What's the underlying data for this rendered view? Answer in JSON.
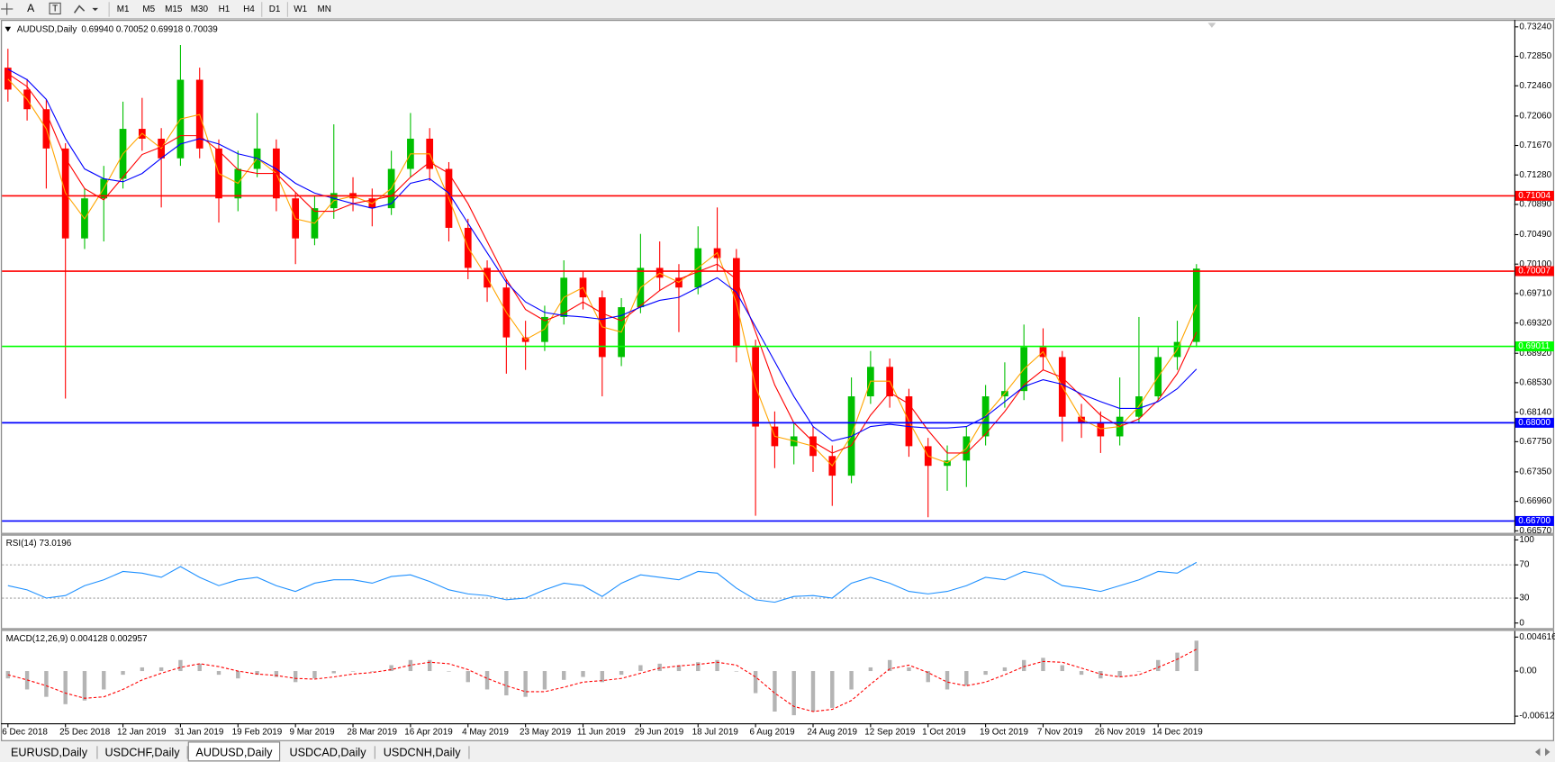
{
  "toolbar": {
    "buttons": [
      "M1",
      "M5",
      "M15",
      "M30",
      "H1",
      "H4",
      "D1",
      "W1",
      "MN"
    ]
  },
  "tabs": [
    {
      "label": "EURUSD,Daily",
      "active": false
    },
    {
      "label": "USDCHF,Daily",
      "active": false
    },
    {
      "label": "AUDUSD,Daily",
      "active": true
    },
    {
      "label": "USDCAD,Daily",
      "active": false
    },
    {
      "label": "USDCNH,Daily",
      "active": false
    }
  ],
  "chart_data": [
    {
      "type": "candlestick",
      "title": "AUDUSD,Daily",
      "subtitle": "0.69940 0.70052 0.69918 0.70039",
      "categories": [
        "6 Dec 2018",
        null,
        null,
        "25 Dec 2018",
        null,
        null,
        "12 Jan 2019",
        null,
        null,
        "31 Jan 2019",
        null,
        null,
        "19 Feb 2019",
        null,
        null,
        "9 Mar 2019",
        null,
        null,
        "28 Mar 2019",
        null,
        null,
        "16 Apr 2019",
        null,
        null,
        "4 May 2019",
        null,
        null,
        "23 May 2019",
        null,
        null,
        "11 Jun 2019",
        null,
        null,
        "29 Jun 2019",
        null,
        null,
        "18 Jul 2019",
        null,
        null,
        "6 Aug 2019",
        null,
        null,
        "24 Aug 2019",
        null,
        null,
        "12 Sep 2019",
        null,
        null,
        "1 Oct 2019",
        null,
        null,
        "19 Oct 2019",
        null,
        null,
        "7 Nov 2019",
        null,
        null,
        "26 Nov 2019",
        null,
        null,
        "14 Dec 2019",
        null,
        null
      ],
      "open": [
        0.727,
        0.7241,
        0.7215,
        0.7163,
        0.7044,
        0.7097,
        0.7123,
        0.7189,
        0.7176,
        0.715,
        0.7254,
        0.7163,
        0.7097,
        0.7136,
        0.7163,
        0.7097,
        0.7044,
        0.7084,
        0.7104,
        0.7097,
        0.7084,
        0.7136,
        0.7176,
        0.7136,
        0.7058,
        0.7005,
        0.6979,
        0.6913,
        0.6907,
        0.694,
        0.6992,
        0.6966,
        0.6887,
        0.6953,
        0.7005,
        0.6992,
        0.6979,
        0.7031,
        0.7018,
        0.69,
        0.6795,
        0.6769,
        0.6782,
        0.6756,
        0.673,
        0.6835,
        0.6874,
        0.6835,
        0.6769,
        0.6743,
        0.675,
        0.6782,
        0.6835,
        0.6842,
        0.69,
        0.6887,
        0.6808,
        0.6801,
        0.6782,
        0.6808,
        0.6835,
        0.6887,
        0.6907
      ],
      "high": [
        0.7295,
        0.7255,
        0.7228,
        0.717,
        0.711,
        0.714,
        0.7225,
        0.723,
        0.719,
        0.73,
        0.727,
        0.7175,
        0.716,
        0.721,
        0.7175,
        0.7105,
        0.71,
        0.7195,
        0.7125,
        0.711,
        0.716,
        0.721,
        0.719,
        0.7145,
        0.707,
        0.7015,
        0.699,
        0.6935,
        0.6955,
        0.7015,
        0.7,
        0.6975,
        0.6965,
        0.705,
        0.704,
        0.701,
        0.706,
        0.7085,
        0.703,
        0.691,
        0.6815,
        0.68,
        0.6795,
        0.677,
        0.686,
        0.6895,
        0.6885,
        0.6845,
        0.678,
        0.677,
        0.6795,
        0.685,
        0.688,
        0.693,
        0.6925,
        0.6895,
        0.6825,
        0.6815,
        0.686,
        0.694,
        0.69,
        0.6935,
        0.701
      ],
      "low": [
        0.7225,
        0.72,
        0.711,
        0.6832,
        0.703,
        0.704,
        0.711,
        0.716,
        0.7085,
        0.714,
        0.715,
        0.7065,
        0.708,
        0.7125,
        0.708,
        0.701,
        0.7035,
        0.707,
        0.708,
        0.706,
        0.7075,
        0.7125,
        0.712,
        0.704,
        0.699,
        0.696,
        0.6865,
        0.687,
        0.6895,
        0.693,
        0.695,
        0.6835,
        0.6875,
        0.6945,
        0.6975,
        0.692,
        0.697,
        0.7,
        0.688,
        0.6677,
        0.674,
        0.6745,
        0.6735,
        0.669,
        0.672,
        0.6825,
        0.682,
        0.6755,
        0.6675,
        0.671,
        0.6715,
        0.677,
        0.682,
        0.683,
        0.687,
        0.6775,
        0.678,
        0.676,
        0.677,
        0.68,
        0.683,
        0.687,
        0.69
      ],
      "close": [
        0.7241,
        0.7215,
        0.7163,
        0.7044,
        0.7097,
        0.7123,
        0.7189,
        0.7176,
        0.715,
        0.7254,
        0.7163,
        0.7097,
        0.7136,
        0.7163,
        0.7097,
        0.7044,
        0.7084,
        0.7104,
        0.7097,
        0.7084,
        0.7136,
        0.7176,
        0.7136,
        0.7058,
        0.7005,
        0.6979,
        0.6913,
        0.6907,
        0.694,
        0.6992,
        0.6966,
        0.6887,
        0.6953,
        0.7005,
        0.6992,
        0.6979,
        0.7031,
        0.7018,
        0.69,
        0.6795,
        0.6769,
        0.6782,
        0.6756,
        0.673,
        0.6835,
        0.6874,
        0.6835,
        0.6769,
        0.6743,
        0.675,
        0.6782,
        0.6835,
        0.6842,
        0.69,
        0.6887,
        0.6808,
        0.6801,
        0.6782,
        0.6808,
        0.6835,
        0.6887,
        0.6907,
        0.7004
      ],
      "up_color": "#00c000",
      "down_color": "#ff0000",
      "series": [
        {
          "color": "#ffa500",
          "values": [
            0.7255,
            0.7228,
            0.7189,
            0.7104,
            0.707,
            0.711,
            0.7156,
            0.7183,
            0.7163,
            0.7202,
            0.7208,
            0.713,
            0.7117,
            0.715,
            0.713,
            0.707,
            0.7064,
            0.7094,
            0.71,
            0.709,
            0.711,
            0.7156,
            0.7156,
            0.7097,
            0.7032,
            0.6992,
            0.6946,
            0.691,
            0.6924,
            0.6966,
            0.6979,
            0.6927,
            0.692,
            0.6979,
            0.6998,
            0.6986,
            0.7005,
            0.7025,
            0.6959,
            0.6848,
            0.6782,
            0.6776,
            0.6769,
            0.6743,
            0.6783,
            0.6855,
            0.6855,
            0.6802,
            0.6756,
            0.6747,
            0.6766,
            0.6809,
            0.6839,
            0.6871,
            0.6894,
            0.6848,
            0.6805,
            0.6792,
            0.6795,
            0.6822,
            0.6861,
            0.6897,
            0.6956
          ]
        },
        {
          "color": "#ff0000",
          "values": [
            0.7262,
            0.7245,
            0.721,
            0.715,
            0.711,
            0.7095,
            0.7125,
            0.7155,
            0.7165,
            0.718,
            0.718,
            0.716,
            0.7135,
            0.713,
            0.713,
            0.7105,
            0.708,
            0.708,
            0.709,
            0.7095,
            0.71,
            0.7125,
            0.7145,
            0.713,
            0.709,
            0.704,
            0.699,
            0.695,
            0.6935,
            0.6945,
            0.696,
            0.6945,
            0.6935,
            0.6955,
            0.6975,
            0.699,
            0.7,
            0.701,
            0.699,
            0.692,
            0.685,
            0.68,
            0.6775,
            0.676,
            0.677,
            0.681,
            0.684,
            0.6825,
            0.679,
            0.676,
            0.676,
            0.6785,
            0.6815,
            0.685,
            0.687,
            0.686,
            0.6835,
            0.681,
            0.6795,
            0.6805,
            0.683,
            0.6865,
            0.692
          ]
        },
        {
          "color": "#0000ff",
          "values": [
            0.7268,
            0.7254,
            0.7228,
            0.7176,
            0.7136,
            0.7123,
            0.7119,
            0.713,
            0.715,
            0.7169,
            0.7176,
            0.7169,
            0.7156,
            0.715,
            0.7136,
            0.7117,
            0.7104,
            0.7097,
            0.709,
            0.7084,
            0.709,
            0.7117,
            0.7123,
            0.7104,
            0.7064,
            0.7025,
            0.6986,
            0.696,
            0.6946,
            0.6942,
            0.694,
            0.6937,
            0.6942,
            0.6953,
            0.6962,
            0.6966,
            0.6979,
            0.6992,
            0.6973,
            0.6927,
            0.6881,
            0.6835,
            0.6795,
            0.6776,
            0.6782,
            0.6795,
            0.6798,
            0.6795,
            0.6793,
            0.6793,
            0.6795,
            0.6808,
            0.6828,
            0.6848,
            0.6857,
            0.6851,
            0.6838,
            0.6828,
            0.6819,
            0.6819,
            0.6828,
            0.6845,
            0.6871
          ]
        }
      ],
      "levels": [
        {
          "value": 0.71004,
          "color": "#ff0000"
        },
        {
          "value": 0.70007,
          "color": "#ff0000"
        },
        {
          "value": 0.69011,
          "color": "#00ff00"
        },
        {
          "value": 0.68,
          "label": "0.68000",
          "color": "#0000ff"
        },
        {
          "value": 0.667,
          "label": "0.66700",
          "color": "#0000ff"
        }
      ],
      "ylim": [
        0.66531,
        0.73319
      ],
      "yticks": [
        {
          "value": 0.7324,
          "label": "0.73240"
        },
        {
          "value": 0.7285,
          "label": "0.72850"
        },
        {
          "value": 0.7246,
          "label": "0.72460"
        },
        {
          "value": 0.7206,
          "label": "0.72060"
        },
        {
          "value": 0.7167,
          "label": "0.71670"
        },
        {
          "value": 0.7128,
          "label": "0.71280"
        },
        {
          "value": 0.7089,
          "label": "0.70890"
        },
        {
          "value": 0.7049,
          "label": "0.70490"
        },
        {
          "value": 0.701,
          "label": "0.70100"
        },
        {
          "value": 0.6971,
          "label": "0.69710"
        },
        {
          "value": 0.6932,
          "label": "0.69320"
        },
        {
          "value": 0.6892,
          "label": "0.68920"
        },
        {
          "value": 0.6853,
          "label": "0.68530"
        },
        {
          "value": 0.6814,
          "label": "0.68140"
        },
        {
          "value": 0.6775,
          "label": "0.67750"
        },
        {
          "value": 0.6735,
          "label": "0.67350"
        },
        {
          "value": 0.6696,
          "label": "0.66960"
        },
        {
          "value": 0.6657,
          "label": "0.66570"
        }
      ]
    },
    {
      "type": "line",
      "title": "RSI(14) 73.0196",
      "color": "#1e90ff",
      "values": [
        45,
        40,
        30,
        33,
        45,
        52,
        62,
        60,
        55,
        68,
        55,
        45,
        52,
        55,
        45,
        38,
        48,
        52,
        52,
        48,
        56,
        58,
        50,
        40,
        35,
        33,
        28,
        30,
        40,
        48,
        45,
        32,
        48,
        58,
        55,
        52,
        62,
        60,
        42,
        28,
        25,
        32,
        33,
        30,
        48,
        55,
        48,
        38,
        35,
        38,
        45,
        55,
        52,
        62,
        58,
        45,
        42,
        38,
        45,
        52,
        62,
        60,
        73.0196
      ],
      "levels": [
        70,
        30
      ],
      "ylim": [
        -6,
        105
      ],
      "yticks": [
        100,
        70,
        30,
        0
      ]
    },
    {
      "type": "macd",
      "title": "MACD(12,26,9) 0.004128 0.002957",
      "histogram": {
        "color": "#b4b4b4",
        "values": [
          -0.001,
          -0.0025,
          -0.0035,
          -0.0045,
          -0.004,
          -0.0025,
          -0.0005,
          0.0005,
          0.0005,
          0.0015,
          0.001,
          -0.0005,
          -0.001,
          -0.0005,
          -0.0008,
          -0.0015,
          -0.001,
          -0.0003,
          0,
          0,
          0.0008,
          0.0015,
          0.0015,
          0,
          -0.0015,
          -0.0025,
          -0.0033,
          -0.0035,
          -0.0025,
          -0.0012,
          -0.0008,
          -0.0015,
          -0.0005,
          0.0008,
          0.001,
          0.0008,
          0.0012,
          0.0015,
          0,
          -0.003,
          -0.0055,
          -0.006,
          -0.0055,
          -0.005,
          -0.0025,
          0.0005,
          0.0015,
          0.0005,
          -0.0015,
          -0.0025,
          -0.002,
          -0.0005,
          0.0005,
          0.0015,
          0.0018,
          0.0008,
          -0.0005,
          -0.001,
          -0.0008,
          0,
          0.0015,
          0.0025,
          0.004128
        ]
      },
      "signal": {
        "color": "#ff0000",
        "values": [
          -0.0005,
          -0.0012,
          -0.002,
          -0.003,
          -0.0037,
          -0.0035,
          -0.0025,
          -0.0012,
          -0.0003,
          0.0005,
          0.001,
          0.0006,
          0,
          -0.0004,
          -0.0006,
          -0.001,
          -0.0011,
          -0.0008,
          -0.0004,
          -0.0002,
          0.0002,
          0.0008,
          0.0012,
          0.001,
          0.0002,
          -0.001,
          -0.002,
          -0.0028,
          -0.0028,
          -0.0022,
          -0.0015,
          -0.0013,
          -0.001,
          -0.0003,
          0.0004,
          0.0007,
          0.0009,
          0.0012,
          0.0008,
          -0.0008,
          -0.003,
          -0.0048,
          -0.0055,
          -0.0052,
          -0.004,
          -0.0018,
          0.0003,
          0.0008,
          -0.0002,
          -0.0015,
          -0.002,
          -0.0015,
          -0.0005,
          0.0006,
          0.0013,
          0.0012,
          0.0004,
          -0.0004,
          -0.0008,
          -0.0005,
          0.0005,
          0.0016,
          0.002957
        ]
      },
      "ylim": [
        -0.00709,
        0.005442
      ],
      "yticks": [
        0.004616,
        {
          "value": 0,
          "label": "0.00"
        },
        -0.006126
      ]
    }
  ]
}
